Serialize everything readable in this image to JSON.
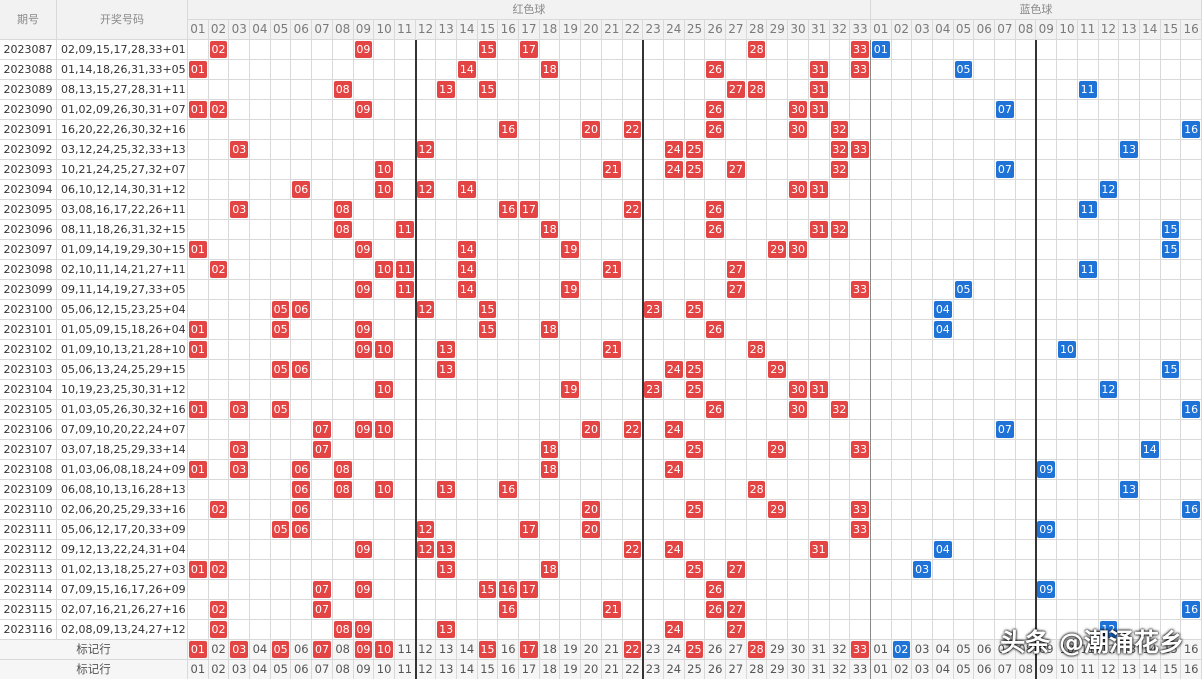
{
  "header": {
    "period": "期号",
    "draw": "开奖号码",
    "red": "红色球",
    "blue": "蓝色球"
  },
  "red_columns": [
    "01",
    "02",
    "03",
    "04",
    "05",
    "06",
    "07",
    "08",
    "09",
    "10",
    "11",
    "12",
    "13",
    "14",
    "15",
    "16",
    "17",
    "18",
    "19",
    "20",
    "21",
    "22",
    "23",
    "24",
    "25",
    "26",
    "27",
    "28",
    "29",
    "30",
    "31",
    "32",
    "33"
  ],
  "blue_columns": [
    "01",
    "02",
    "03",
    "04",
    "05",
    "06",
    "07",
    "08",
    "09",
    "10",
    "11",
    "12",
    "13",
    "14",
    "15",
    "16"
  ],
  "rows": [
    {
      "period": "2023087",
      "draw": "02,09,15,17,28,33+01",
      "reds": [
        "02",
        "09",
        "15",
        "17",
        "28",
        "33"
      ],
      "blue": "01"
    },
    {
      "period": "2023088",
      "draw": "01,14,18,26,31,33+05",
      "reds": [
        "01",
        "14",
        "18",
        "26",
        "31",
        "33"
      ],
      "blue": "05"
    },
    {
      "period": "2023089",
      "draw": "08,13,15,27,28,31+11",
      "reds": [
        "08",
        "13",
        "15",
        "27",
        "28",
        "31"
      ],
      "blue": "11"
    },
    {
      "period": "2023090",
      "draw": "01,02,09,26,30,31+07",
      "reds": [
        "01",
        "02",
        "09",
        "26",
        "30",
        "31"
      ],
      "blue": "07"
    },
    {
      "period": "2023091",
      "draw": "16,20,22,26,30,32+16",
      "reds": [
        "16",
        "20",
        "22",
        "26",
        "30",
        "32"
      ],
      "blue": "16"
    },
    {
      "period": "2023092",
      "draw": "03,12,24,25,32,33+13",
      "reds": [
        "03",
        "12",
        "24",
        "25",
        "32",
        "33"
      ],
      "blue": "13"
    },
    {
      "period": "2023093",
      "draw": "10,21,24,25,27,32+07",
      "reds": [
        "10",
        "21",
        "24",
        "25",
        "27",
        "32"
      ],
      "blue": "07"
    },
    {
      "period": "2023094",
      "draw": "06,10,12,14,30,31+12",
      "reds": [
        "06",
        "10",
        "12",
        "14",
        "30",
        "31"
      ],
      "blue": "12"
    },
    {
      "period": "2023095",
      "draw": "03,08,16,17,22,26+11",
      "reds": [
        "03",
        "08",
        "16",
        "17",
        "22",
        "26"
      ],
      "blue": "11"
    },
    {
      "period": "2023096",
      "draw": "08,11,18,26,31,32+15",
      "reds": [
        "08",
        "11",
        "18",
        "26",
        "31",
        "32"
      ],
      "blue": "15"
    },
    {
      "period": "2023097",
      "draw": "01,09,14,19,29,30+15",
      "reds": [
        "01",
        "09",
        "14",
        "19",
        "29",
        "30"
      ],
      "blue": "15"
    },
    {
      "period": "2023098",
      "draw": "02,10,11,14,21,27+11",
      "reds": [
        "02",
        "10",
        "11",
        "14",
        "21",
        "27"
      ],
      "blue": "11"
    },
    {
      "period": "2023099",
      "draw": "09,11,14,19,27,33+05",
      "reds": [
        "09",
        "11",
        "14",
        "19",
        "27",
        "33"
      ],
      "blue": "05"
    },
    {
      "period": "2023100",
      "draw": "05,06,12,15,23,25+04",
      "reds": [
        "05",
        "06",
        "12",
        "15",
        "23",
        "25"
      ],
      "blue": "04"
    },
    {
      "period": "2023101",
      "draw": "01,05,09,15,18,26+04",
      "reds": [
        "01",
        "05",
        "09",
        "15",
        "18",
        "26"
      ],
      "blue": "04"
    },
    {
      "period": "2023102",
      "draw": "01,09,10,13,21,28+10",
      "reds": [
        "01",
        "09",
        "10",
        "13",
        "21",
        "28"
      ],
      "blue": "10"
    },
    {
      "period": "2023103",
      "draw": "05,06,13,24,25,29+15",
      "reds": [
        "05",
        "06",
        "13",
        "24",
        "25",
        "29"
      ],
      "blue": "15"
    },
    {
      "period": "2023104",
      "draw": "10,19,23,25,30,31+12",
      "reds": [
        "10",
        "19",
        "23",
        "25",
        "30",
        "31"
      ],
      "blue": "12"
    },
    {
      "period": "2023105",
      "draw": "01,03,05,26,30,32+16",
      "reds": [
        "01",
        "03",
        "05",
        "26",
        "30",
        "32"
      ],
      "blue": "16"
    },
    {
      "period": "2023106",
      "draw": "07,09,10,20,22,24+07",
      "reds": [
        "07",
        "09",
        "10",
        "20",
        "22",
        "24"
      ],
      "blue": "07"
    },
    {
      "period": "2023107",
      "draw": "03,07,18,25,29,33+14",
      "reds": [
        "03",
        "07",
        "18",
        "25",
        "29",
        "33"
      ],
      "blue": "14"
    },
    {
      "period": "2023108",
      "draw": "01,03,06,08,18,24+09",
      "reds": [
        "01",
        "03",
        "06",
        "08",
        "18",
        "24"
      ],
      "blue": "09"
    },
    {
      "period": "2023109",
      "draw": "06,08,10,13,16,28+13",
      "reds": [
        "06",
        "08",
        "10",
        "13",
        "16",
        "28"
      ],
      "blue": "13"
    },
    {
      "period": "2023110",
      "draw": "02,06,20,25,29,33+16",
      "reds": [
        "02",
        "06",
        "20",
        "25",
        "29",
        "33"
      ],
      "blue": "16"
    },
    {
      "period": "2023111",
      "draw": "05,06,12,17,20,33+09",
      "reds": [
        "05",
        "06",
        "12",
        "17",
        "20",
        "33"
      ],
      "blue": "09"
    },
    {
      "period": "2023112",
      "draw": "09,12,13,22,24,31+04",
      "reds": [
        "09",
        "12",
        "13",
        "22",
        "24",
        "31"
      ],
      "blue": "04"
    },
    {
      "period": "2023113",
      "draw": "01,02,13,18,25,27+03",
      "reds": [
        "01",
        "02",
        "13",
        "18",
        "25",
        "27"
      ],
      "blue": "03"
    },
    {
      "period": "2023114",
      "draw": "07,09,15,16,17,26+09",
      "reds": [
        "07",
        "09",
        "15",
        "16",
        "17",
        "26"
      ],
      "blue": "09"
    },
    {
      "period": "2023115",
      "draw": "02,07,16,21,26,27+16",
      "reds": [
        "02",
        "07",
        "16",
        "21",
        "26",
        "27"
      ],
      "blue": "16"
    },
    {
      "period": "2023116",
      "draw": "02,08,09,13,24,27+12",
      "reds": [
        "02",
        "08",
        "09",
        "13",
        "24",
        "27"
      ],
      "blue": "12"
    }
  ],
  "footer": [
    {
      "label": "标记行",
      "red_marked": [
        "01",
        "03",
        "05",
        "07",
        "09",
        "10",
        "15",
        "17",
        "22",
        "25",
        "28",
        "33"
      ],
      "blue_marked": [
        "02"
      ]
    },
    {
      "label": "标记行"
    }
  ],
  "watermark": "头条 @潮涌花乡"
}
